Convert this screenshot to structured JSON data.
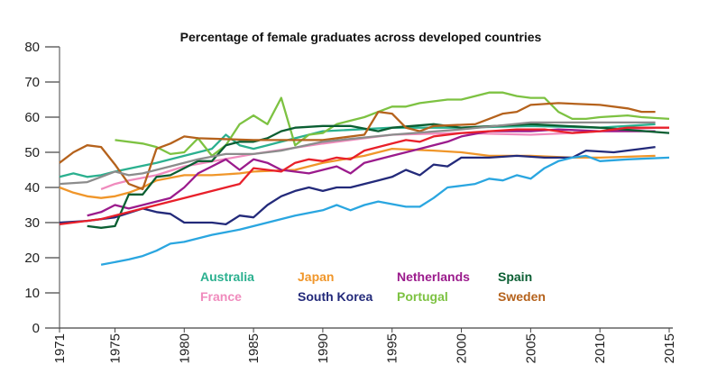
{
  "chart_data": {
    "type": "line",
    "title": "Percentage of female graduates across developed countries",
    "xlabel": "",
    "ylabel": "",
    "xlim": [
      1971,
      2015
    ],
    "ylim": [
      0,
      80
    ],
    "xticks": [
      1971,
      1975,
      1980,
      1985,
      1990,
      1995,
      2000,
      2005,
      2010,
      2015
    ],
    "yticks": [
      0,
      10,
      20,
      30,
      40,
      50,
      60,
      70,
      80
    ],
    "grid": false,
    "legend_position": "bottom-center",
    "series": [
      {
        "name": "Australia",
        "color": "#2bb08f",
        "points": [
          [
            1971,
            43
          ],
          [
            1972,
            44
          ],
          [
            1973,
            43
          ],
          [
            1974,
            43.5
          ],
          [
            1975,
            44.5
          ],
          [
            1978,
            47
          ],
          [
            1980,
            49
          ],
          [
            1982,
            51
          ],
          [
            1983,
            55
          ],
          [
            1984,
            52
          ],
          [
            1985,
            51
          ],
          [
            1986,
            52
          ],
          [
            1987,
            53
          ],
          [
            1988,
            54
          ],
          [
            1990,
            56
          ],
          [
            1995,
            57
          ],
          [
            2000,
            57
          ],
          [
            2005,
            57.5
          ],
          [
            2010,
            57
          ],
          [
            2014,
            58
          ]
        ]
      },
      {
        "name": "France",
        "color": "#f08bbd",
        "points": [
          [
            1974,
            39.5
          ],
          [
            1975,
            41
          ],
          [
            1976,
            42
          ],
          [
            1978,
            43.5
          ],
          [
            1980,
            46
          ],
          [
            1985,
            49.5
          ],
          [
            1990,
            52.5
          ],
          [
            1995,
            55
          ],
          [
            2000,
            55.5
          ],
          [
            2005,
            55
          ],
          [
            2008,
            55.5
          ],
          [
            2012,
            56.5
          ],
          [
            2014,
            57
          ]
        ]
      },
      {
        "name": "Japan",
        "color": "#f0962a",
        "points": [
          [
            1971,
            40
          ],
          [
            1972,
            38.5
          ],
          [
            1973,
            37.5
          ],
          [
            1974,
            37
          ],
          [
            1975,
            37.5
          ],
          [
            1976,
            38.5
          ],
          [
            1977,
            40
          ],
          [
            1978,
            42
          ],
          [
            1980,
            43.5
          ],
          [
            1982,
            43.5
          ],
          [
            1984,
            44
          ],
          [
            1985,
            44.5
          ],
          [
            1988,
            45
          ],
          [
            1990,
            47
          ],
          [
            1993,
            49
          ],
          [
            1995,
            51
          ],
          [
            1998,
            50.5
          ],
          [
            2000,
            50
          ],
          [
            2002,
            49
          ],
          [
            2005,
            49
          ],
          [
            2008,
            48.5
          ],
          [
            2010,
            48.5
          ],
          [
            2014,
            49
          ]
        ]
      },
      {
        "name": "South Korea",
        "color": "#232a7a",
        "points": [
          [
            1971,
            30
          ],
          [
            1973,
            30.5
          ],
          [
            1975,
            31.5
          ],
          [
            1977,
            34
          ],
          [
            1978,
            33
          ],
          [
            1979,
            32.5
          ],
          [
            1980,
            30
          ],
          [
            1982,
            30
          ],
          [
            1983,
            29.5
          ],
          [
            1984,
            32
          ],
          [
            1985,
            31.5
          ],
          [
            1986,
            35
          ],
          [
            1987,
            37.5
          ],
          [
            1988,
            39
          ],
          [
            1989,
            40
          ],
          [
            1990,
            39
          ],
          [
            1991,
            40
          ],
          [
            1992,
            40
          ],
          [
            1993,
            41
          ],
          [
            1994,
            42
          ],
          [
            1995,
            43
          ],
          [
            1996,
            45
          ],
          [
            1997,
            43.5
          ],
          [
            1998,
            46.5
          ],
          [
            1999,
            46
          ],
          [
            2000,
            48.5
          ],
          [
            2002,
            48.5
          ],
          [
            2004,
            49
          ],
          [
            2006,
            48.5
          ],
          [
            2008,
            48.5
          ],
          [
            2009,
            50.5
          ],
          [
            2011,
            50
          ],
          [
            2013,
            51
          ],
          [
            2014,
            51.5
          ]
        ]
      },
      {
        "name": "Netherlands",
        "color": "#9b1b8c",
        "points": [
          [
            1973,
            32
          ],
          [
            1974,
            33
          ],
          [
            1975,
            35
          ],
          [
            1976,
            34
          ],
          [
            1977,
            35
          ],
          [
            1978,
            36
          ],
          [
            1979,
            37
          ],
          [
            1980,
            40
          ],
          [
            1981,
            44
          ],
          [
            1982,
            46
          ],
          [
            1983,
            48
          ],
          [
            1984,
            45
          ],
          [
            1985,
            48
          ],
          [
            1986,
            47
          ],
          [
            1987,
            45
          ],
          [
            1989,
            44
          ],
          [
            1990,
            45
          ],
          [
            1991,
            46
          ],
          [
            1992,
            44
          ],
          [
            1993,
            47
          ],
          [
            1995,
            49
          ],
          [
            1997,
            51
          ],
          [
            1999,
            53
          ],
          [
            2000,
            54.5
          ],
          [
            2002,
            56
          ],
          [
            2005,
            56
          ],
          [
            2007,
            56.5
          ],
          [
            2010,
            56
          ],
          [
            2014,
            56
          ]
        ]
      },
      {
        "name": "Portugal",
        "color": "#7dc242",
        "points": [
          [
            1975,
            53.5
          ],
          [
            1977,
            52.5
          ],
          [
            1978,
            51.5
          ],
          [
            1979,
            49.5
          ],
          [
            1980,
            50
          ],
          [
            1981,
            54
          ],
          [
            1982,
            49
          ],
          [
            1983,
            52
          ],
          [
            1984,
            58
          ],
          [
            1985,
            60.5
          ],
          [
            1986,
            58
          ],
          [
            1987,
            65.5
          ],
          [
            1988,
            52
          ],
          [
            1989,
            55
          ],
          [
            1990,
            55.5
          ],
          [
            1991,
            58
          ],
          [
            1992,
            59
          ],
          [
            1993,
            60
          ],
          [
            1994,
            61.5
          ],
          [
            1995,
            63
          ],
          [
            1996,
            63
          ],
          [
            1997,
            64
          ],
          [
            1999,
            65
          ],
          [
            2000,
            65
          ],
          [
            2001,
            66
          ],
          [
            2002,
            67
          ],
          [
            2003,
            67
          ],
          [
            2004,
            66
          ],
          [
            2005,
            65.5
          ],
          [
            2006,
            65.5
          ],
          [
            2007,
            61.5
          ],
          [
            2008,
            59.5
          ],
          [
            2009,
            59.5
          ],
          [
            2010,
            60
          ],
          [
            2012,
            60.5
          ],
          [
            2013,
            60
          ],
          [
            2015,
            59.5
          ]
        ]
      },
      {
        "name": "Spain",
        "color": "#0a5e32",
        "points": [
          [
            1973,
            29
          ],
          [
            1974,
            28.5
          ],
          [
            1975,
            29
          ],
          [
            1976,
            38
          ],
          [
            1977,
            38
          ],
          [
            1978,
            43
          ],
          [
            1979,
            43.5
          ],
          [
            1980,
            45.5
          ],
          [
            1981,
            47.5
          ],
          [
            1982,
            47.5
          ],
          [
            1983,
            52
          ],
          [
            1984,
            53
          ],
          [
            1985,
            53
          ],
          [
            1986,
            54
          ],
          [
            1987,
            56
          ],
          [
            1988,
            57
          ],
          [
            1990,
            57.5
          ],
          [
            1992,
            57.5
          ],
          [
            1994,
            56
          ],
          [
            1995,
            57
          ],
          [
            1998,
            58
          ],
          [
            2000,
            57
          ],
          [
            2005,
            58
          ],
          [
            2010,
            57
          ],
          [
            2015,
            55.5
          ]
        ]
      },
      {
        "name": "Sweden",
        "color": "#b5621c",
        "points": [
          [
            1971,
            47
          ],
          [
            1972,
            50
          ],
          [
            1973,
            52
          ],
          [
            1974,
            51.5
          ],
          [
            1975,
            46.5
          ],
          [
            1976,
            41
          ],
          [
            1977,
            39.5
          ],
          [
            1978,
            51
          ],
          [
            1979,
            52.5
          ],
          [
            1980,
            54.5
          ],
          [
            1981,
            54
          ],
          [
            1985,
            53.5
          ],
          [
            1990,
            53.5
          ],
          [
            1993,
            55
          ],
          [
            1994,
            61.5
          ],
          [
            1995,
            61
          ],
          [
            1996,
            57
          ],
          [
            1997,
            56
          ],
          [
            1998,
            57.5
          ],
          [
            2001,
            58
          ],
          [
            2002,
            59.5
          ],
          [
            2003,
            61
          ],
          [
            2004,
            61.5
          ],
          [
            2005,
            63.5
          ],
          [
            2007,
            64
          ],
          [
            2010,
            63.5
          ],
          [
            2012,
            62.5
          ],
          [
            2013,
            61.5
          ],
          [
            2014,
            61.5
          ]
        ]
      },
      {
        "color": "#e8202a",
        "points": [
          [
            1971,
            29.5
          ],
          [
            1974,
            31
          ],
          [
            1977,
            34
          ],
          [
            1980,
            37
          ],
          [
            1983,
            40
          ],
          [
            1984,
            41
          ],
          [
            1985,
            45.5
          ],
          [
            1986,
            45
          ],
          [
            1987,
            44.5
          ],
          [
            1988,
            47
          ],
          [
            1989,
            48
          ],
          [
            1990,
            47.5
          ],
          [
            1991,
            48.5
          ],
          [
            1992,
            48
          ],
          [
            1993,
            50.5
          ],
          [
            1995,
            52.5
          ],
          [
            1996,
            53.5
          ],
          [
            1997,
            53
          ],
          [
            1998,
            54.5
          ],
          [
            2000,
            55.5
          ],
          [
            2002,
            56
          ],
          [
            2004,
            56.5
          ],
          [
            2006,
            56.5
          ],
          [
            2008,
            55.5
          ],
          [
            2010,
            56
          ],
          [
            2012,
            57
          ],
          [
            2015,
            57
          ]
        ]
      },
      {
        "color": "#2aa6e0",
        "points": [
          [
            1974,
            18
          ],
          [
            1976,
            19.5
          ],
          [
            1977,
            20.5
          ],
          [
            1978,
            22
          ],
          [
            1979,
            24
          ],
          [
            1980,
            24.5
          ],
          [
            1982,
            26.5
          ],
          [
            1984,
            28
          ],
          [
            1986,
            30
          ],
          [
            1988,
            32
          ],
          [
            1990,
            33.5
          ],
          [
            1991,
            35
          ],
          [
            1992,
            33.5
          ],
          [
            1993,
            35
          ],
          [
            1994,
            36
          ],
          [
            1996,
            34.5
          ],
          [
            1997,
            34.5
          ],
          [
            1998,
            37
          ],
          [
            1999,
            40
          ],
          [
            2000,
            40.5
          ],
          [
            2001,
            41
          ],
          [
            2002,
            42.5
          ],
          [
            2003,
            42
          ],
          [
            2004,
            43.5
          ],
          [
            2005,
            42.5
          ],
          [
            2006,
            45.5
          ],
          [
            2007,
            47.5
          ],
          [
            2008,
            48.5
          ],
          [
            2009,
            49
          ],
          [
            2010,
            47.5
          ],
          [
            2012,
            48
          ],
          [
            2015,
            48.5
          ]
        ]
      },
      {
        "color": "#8c8c8c",
        "points": [
          [
            1971,
            41
          ],
          [
            1973,
            41.5
          ],
          [
            1974,
            43
          ],
          [
            1975,
            44.5
          ],
          [
            1976,
            43.5
          ],
          [
            1977,
            44
          ],
          [
            1979,
            46
          ],
          [
            1981,
            48
          ],
          [
            1983,
            49.5
          ],
          [
            1985,
            49.5
          ],
          [
            1987,
            50.5
          ],
          [
            1990,
            53
          ],
          [
            1995,
            55
          ],
          [
            2000,
            56.5
          ],
          [
            2005,
            58.5
          ],
          [
            2010,
            58.5
          ],
          [
            2014,
            58.5
          ]
        ]
      }
    ]
  }
}
